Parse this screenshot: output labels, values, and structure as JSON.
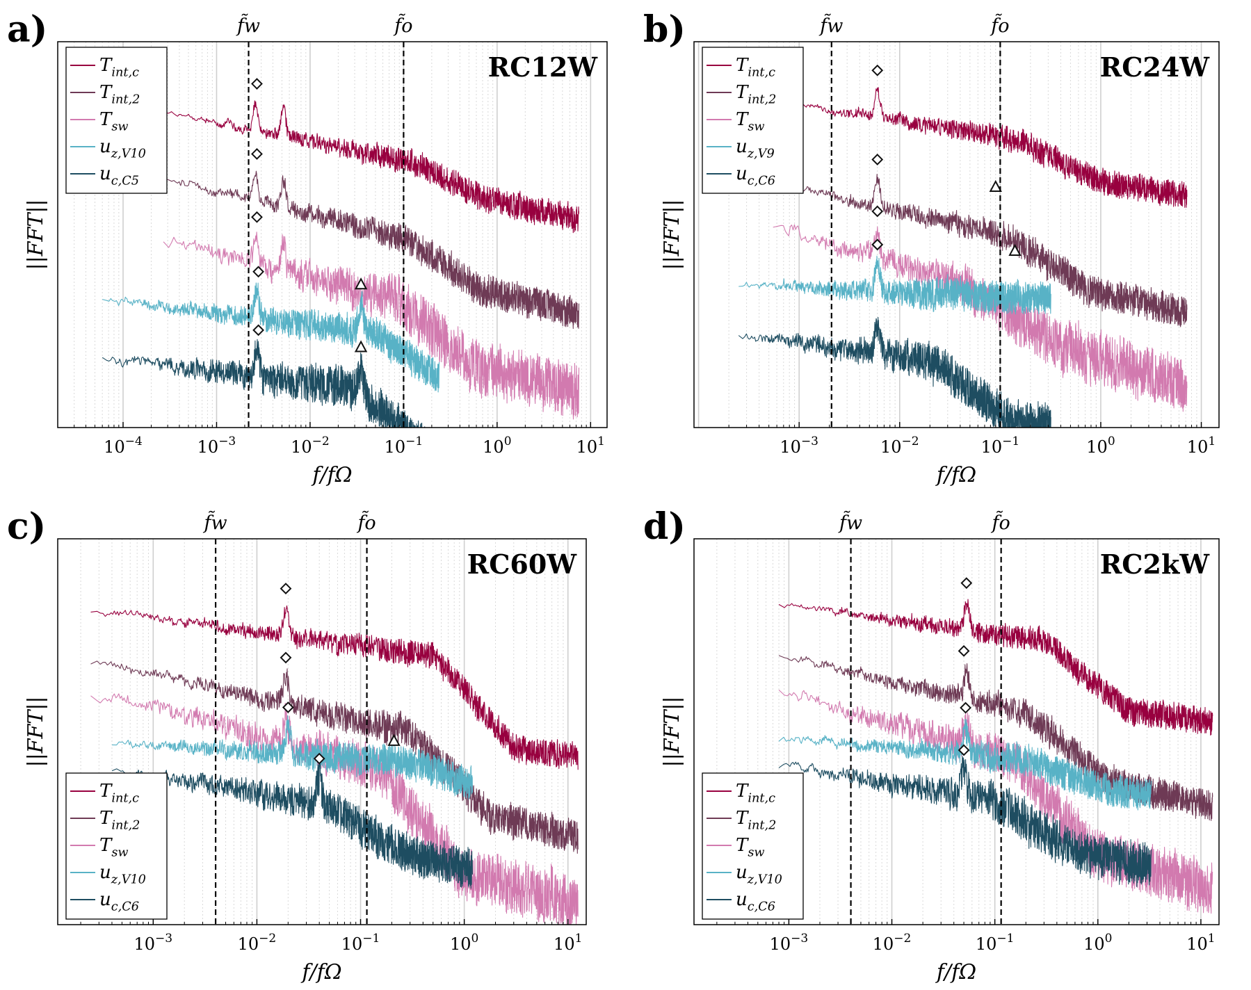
{
  "chart_data": [
    {
      "type": "line",
      "panel_label": "a)",
      "title": "RC12W",
      "xlabel": "f/fΩ",
      "ylabel": "||FFT||",
      "xscale": "log",
      "xlim": [
        2e-05,
        15
      ],
      "xticks": [
        {
          "value": 0.0001,
          "base": "10",
          "exp": "−4"
        },
        {
          "value": 0.001,
          "base": "10",
          "exp": "−3"
        },
        {
          "value": 0.01,
          "base": "10",
          "exp": "−2"
        },
        {
          "value": 0.1,
          "base": "10",
          "exp": "−1"
        },
        {
          "value": 1,
          "base": "10",
          "exp": "0"
        },
        {
          "value": 10,
          "base": "10",
          "exp": "1"
        }
      ],
      "grid": true,
      "legend_position": "top-left",
      "vlines": [
        {
          "label": "f̃w",
          "x": 0.0022
        },
        {
          "label": "f̃o",
          "x": 0.1
        }
      ],
      "series": [
        {
          "name": "Tint,c",
          "color": "#98003f",
          "xmin": 0.00027,
          "xmax": 7.5,
          "offset": 0.9,
          "slope": 0.08,
          "knee": 0.12,
          "drop": 0.1,
          "noise": 0.1,
          "peaks": [
            0.0026,
            0.0052
          ]
        },
        {
          "name": "Tint,2",
          "color": "#6e3a55",
          "xmin": 0.00027,
          "xmax": 7.5,
          "offset": 0.62,
          "slope": 0.1,
          "knee": 0.1,
          "drop": 0.14,
          "noise": 0.12,
          "peaks": [
            0.0026,
            0.0052
          ]
        },
        {
          "name": "Tsw",
          "color": "#d27aaf",
          "xmin": 0.00027,
          "xmax": 7.5,
          "offset": 0.35,
          "slope": 0.1,
          "knee": 0.08,
          "drop": 0.2,
          "noise": 0.2,
          "peaks": [
            0.0026,
            0.0052
          ]
        },
        {
          "name": "uz,V10",
          "color": "#58b2c6",
          "xmin": 6e-05,
          "xmax": 0.24,
          "offset": 0.1,
          "slope": 0.05,
          "knee": 0.05,
          "drop": 0.18,
          "noise": 0.12,
          "peaks": [
            0.0027,
            0.035
          ]
        },
        {
          "name": "uc,C5",
          "color": "#1e4d61",
          "xmin": 6e-05,
          "xmax": 0.24,
          "offset": -0.15,
          "slope": 0.05,
          "knee": 0.03,
          "drop": 0.22,
          "noise": 0.15,
          "peaks": [
            0.0027,
            0.035
          ]
        }
      ],
      "markers": [
        {
          "shape": "diamond",
          "series": "Tint,c",
          "x": 0.0027
        },
        {
          "shape": "diamond",
          "series": "Tint,2",
          "x": 0.0027
        },
        {
          "shape": "diamond",
          "series": "Tsw",
          "x": 0.0027
        },
        {
          "shape": "diamond",
          "series": "uz,V10",
          "x": 0.0028
        },
        {
          "shape": "diamond",
          "series": "uc,C5",
          "x": 0.0028
        },
        {
          "shape": "triangle",
          "series": "uz,V10",
          "x": 0.035
        },
        {
          "shape": "triangle",
          "series": "uc,C5",
          "x": 0.035
        }
      ]
    },
    {
      "type": "line",
      "panel_label": "b)",
      "title": "RC24W",
      "xlabel": "f/fΩ",
      "ylabel": "||FFT||",
      "xscale": "log",
      "xlim": [
        9e-05,
        15
      ],
      "xticks": [
        {
          "value": 0.001,
          "base": "10",
          "exp": "−3"
        },
        {
          "value": 0.01,
          "base": "10",
          "exp": "−2"
        },
        {
          "value": 0.1,
          "base": "10",
          "exp": "−1"
        },
        {
          "value": 1,
          "base": "10",
          "exp": "0"
        },
        {
          "value": 10,
          "base": "10",
          "exp": "1"
        }
      ],
      "grid": true,
      "legend_position": "top-left",
      "vlines": [
        {
          "label": "f̃w",
          "x": 0.0021
        },
        {
          "label": "f̃o",
          "x": 0.1
        }
      ],
      "series": [
        {
          "name": "Tint,c",
          "color": "#98003f",
          "xmin": 0.00055,
          "xmax": 7.2,
          "offset": 0.95,
          "slope": 0.07,
          "knee": 0.15,
          "drop": 0.12,
          "noise": 0.1,
          "peaks": [
            0.006
          ]
        },
        {
          "name": "Tint,2",
          "color": "#6e3a55",
          "xmin": 0.00055,
          "xmax": 7.2,
          "offset": 0.6,
          "slope": 0.1,
          "knee": 0.12,
          "drop": 0.15,
          "noise": 0.12,
          "peaks": [
            0.006
          ]
        },
        {
          "name": "Tsw",
          "color": "#d27aaf",
          "xmin": 0.00055,
          "xmax": 7.2,
          "offset": 0.42,
          "slope": 0.14,
          "knee": 0.05,
          "drop": 0.12,
          "noise": 0.2,
          "peaks": [
            0.006
          ]
        },
        {
          "name": "uz,V9",
          "color": "#58b2c6",
          "xmin": 0.00025,
          "xmax": 0.32,
          "offset": 0.16,
          "slope": 0.02,
          "knee": 0.5,
          "drop": 0.0,
          "noise": 0.12,
          "peaks": [
            0.006
          ]
        },
        {
          "name": "uc,C6",
          "color": "#1e4d61",
          "xmin": 0.00025,
          "xmax": 0.32,
          "offset": -0.05,
          "slope": 0.06,
          "knee": 0.02,
          "drop": 0.2,
          "noise": 0.15,
          "peaks": [
            0.006
          ]
        }
      ],
      "markers": [
        {
          "shape": "diamond",
          "series": "Tint,c",
          "x": 0.006
        },
        {
          "shape": "diamond",
          "series": "Tint,2",
          "x": 0.006
        },
        {
          "shape": "diamond",
          "series": "Tsw",
          "x": 0.006
        },
        {
          "shape": "diamond",
          "series": "uz,V9",
          "x": 0.006
        },
        {
          "shape": "diamond",
          "series": "uz,V9",
          "x": 0.006
        },
        {
          "shape": "triangle",
          "series": "Tint,2",
          "x": 0.09
        },
        {
          "shape": "triangle",
          "series": "uz,V9",
          "x": 0.14
        }
      ]
    },
    {
      "type": "line",
      "panel_label": "c)",
      "title": "RC60W",
      "xlabel": "f/fΩ",
      "ylabel": "||FFT||",
      "xscale": "log",
      "xlim": [
        0.00012,
        15
      ],
      "xticks": [
        {
          "value": 0.001,
          "base": "10",
          "exp": "−3"
        },
        {
          "value": 0.01,
          "base": "10",
          "exp": "−2"
        },
        {
          "value": 0.1,
          "base": "10",
          "exp": "−1"
        },
        {
          "value": 1,
          "base": "10",
          "exp": "0"
        },
        {
          "value": 10,
          "base": "10",
          "exp": "1"
        }
      ],
      "grid": true,
      "legend_position": "bottom-left",
      "vlines": [
        {
          "label": "f̃w",
          "x": 0.004
        },
        {
          "label": "f̃o",
          "x": 0.115
        }
      ],
      "series": [
        {
          "name": "Tint,c",
          "color": "#98003f",
          "xmin": 0.00025,
          "xmax": 12.5,
          "offset": 0.9,
          "slope": 0.06,
          "knee": 0.5,
          "drop": 0.35,
          "noise": 0.1,
          "peaks": [
            0.019
          ]
        },
        {
          "name": "Tint,2",
          "color": "#6e3a55",
          "xmin": 0.00025,
          "xmax": 12.5,
          "offset": 0.68,
          "slope": 0.1,
          "knee": 0.3,
          "drop": 0.28,
          "noise": 0.13,
          "peaks": [
            0.019
          ]
        },
        {
          "name": "Tsw",
          "color": "#d27aaf",
          "xmin": 0.00025,
          "xmax": 12.5,
          "offset": 0.55,
          "slope": 0.12,
          "knee": 0.15,
          "drop": 0.35,
          "noise": 0.2,
          "peaks": [
            0.019
          ]
        },
        {
          "name": "uz,V10",
          "color": "#58b2c6",
          "xmin": 0.0004,
          "xmax": 1.2,
          "offset": 0.33,
          "slope": 0.03,
          "knee": 0.3,
          "drop": 0.1,
          "noise": 0.12,
          "peaks": [
            0.02
          ]
        },
        {
          "name": "uc,C6",
          "color": "#1e4d61",
          "xmin": 0.0004,
          "xmax": 1.2,
          "offset": 0.22,
          "slope": 0.08,
          "knee": 0.05,
          "drop": 0.15,
          "noise": 0.15,
          "peaks": [
            0.04
          ]
        }
      ],
      "markers": [
        {
          "shape": "diamond",
          "series": "Tint,c",
          "x": 0.019
        },
        {
          "shape": "diamond",
          "series": "Tint,2",
          "x": 0.019
        },
        {
          "shape": "diamond",
          "series": "uz,V10",
          "x": 0.02
        },
        {
          "shape": "diamond",
          "series": "uc,C6",
          "x": 0.04
        },
        {
          "shape": "triangle",
          "series": "Tsw",
          "x": 0.21
        }
      ]
    },
    {
      "type": "line",
      "panel_label": "d)",
      "title": "RC2kW",
      "xlabel": "f/fΩ",
      "ylabel": "||FFT||",
      "xscale": "log",
      "xlim": [
        0.00012,
        15
      ],
      "xticks": [
        {
          "value": 0.001,
          "base": "10",
          "exp": "−3"
        },
        {
          "value": 0.01,
          "base": "10",
          "exp": "−2"
        },
        {
          "value": 0.1,
          "base": "10",
          "exp": "−1"
        },
        {
          "value": 1,
          "base": "10",
          "exp": "0"
        },
        {
          "value": 10,
          "base": "10",
          "exp": "1"
        }
      ],
      "grid": true,
      "legend_position": "bottom-left",
      "vlines": [
        {
          "label": "f̃w",
          "x": 0.004
        },
        {
          "label": "f̃o",
          "x": 0.115
        }
      ],
      "series": [
        {
          "name": "Tint,c",
          "color": "#98003f",
          "xmin": 0.0008,
          "xmax": 13,
          "offset": 0.92,
          "slope": 0.06,
          "knee": 0.3,
          "drop": 0.25,
          "noise": 0.1,
          "peaks": [
            0.053
          ]
        },
        {
          "name": "Tint,2",
          "color": "#6e3a55",
          "xmin": 0.0008,
          "xmax": 13,
          "offset": 0.7,
          "slope": 0.1,
          "knee": 0.2,
          "drop": 0.22,
          "noise": 0.12,
          "peaks": [
            0.053
          ]
        },
        {
          "name": "Tsw",
          "color": "#d27aaf",
          "xmin": 0.0008,
          "xmax": 13,
          "offset": 0.55,
          "slope": 0.13,
          "knee": 0.15,
          "drop": 0.3,
          "noise": 0.2,
          "peaks": [
            0.053
          ]
        },
        {
          "name": "uz,V10",
          "color": "#58b2c6",
          "xmin": 0.0008,
          "xmax": 3.3,
          "offset": 0.35,
          "slope": 0.04,
          "knee": 0.2,
          "drop": 0.1,
          "noise": 0.12,
          "peaks": [
            0.052
          ]
        },
        {
          "name": "uc,C6",
          "color": "#1e4d61",
          "xmin": 0.0008,
          "xmax": 3.3,
          "offset": 0.24,
          "slope": 0.08,
          "knee": 0.1,
          "drop": 0.15,
          "noise": 0.16,
          "peaks": [
            0.05
          ]
        }
      ],
      "markers": [
        {
          "shape": "diamond",
          "series": "Tint,c",
          "x": 0.053
        },
        {
          "shape": "diamond",
          "series": "Tint,2",
          "x": 0.05
        },
        {
          "shape": "diamond",
          "series": "uz,V10",
          "x": 0.052
        },
        {
          "shape": "diamond",
          "series": "uc,C6",
          "x": 0.05
        }
      ]
    }
  ]
}
